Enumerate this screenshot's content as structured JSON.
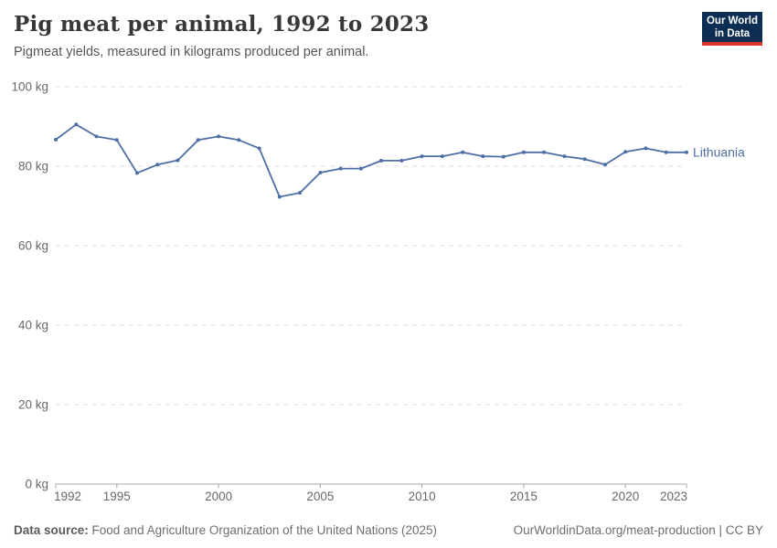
{
  "header": {
    "title": "Pig meat per animal, 1992 to 2023",
    "subtitle": "Pigmeat yields, measured in kilograms produced per animal."
  },
  "logo": {
    "line1": "Our World",
    "line2": "in Data"
  },
  "chart_data": {
    "type": "line",
    "title": "Pig meat per animal, 1992 to 2023",
    "ylabel": "",
    "xlabel": "",
    "unit": "kg",
    "ylim": [
      0,
      100
    ],
    "grid": true,
    "legend_position": "end-of-line",
    "x": [
      1992,
      1993,
      1994,
      1995,
      1996,
      1997,
      1998,
      1999,
      2000,
      2001,
      2002,
      2003,
      2004,
      2005,
      2006,
      2007,
      2008,
      2009,
      2010,
      2011,
      2012,
      2013,
      2014,
      2015,
      2016,
      2017,
      2018,
      2019,
      2020,
      2021,
      2022,
      2023
    ],
    "series": [
      {
        "name": "Lithuania",
        "color": "#4d6fa6",
        "values": [
          86.7,
          90.5,
          87.5,
          86.6,
          78.3,
          80.4,
          81.5,
          86.6,
          87.5,
          86.6,
          84.5,
          72.3,
          73.3,
          78.4,
          79.4,
          79.4,
          81.4,
          81.4,
          82.5,
          82.5,
          83.5,
          82.5,
          82.4,
          83.5,
          83.5,
          82.5,
          81.8,
          80.4,
          83.6,
          84.5,
          83.5,
          83.5
        ]
      }
    ],
    "yticks": [
      0,
      20,
      40,
      60,
      80,
      100
    ],
    "ytick_labels": [
      "0 kg",
      "20 kg",
      "40 kg",
      "60 kg",
      "80 kg",
      "100 kg"
    ],
    "xticks": [
      1992,
      1995,
      2000,
      2005,
      2010,
      2015,
      2020,
      2023
    ]
  },
  "footer": {
    "source_label": "Data source:",
    "source_text": " Food and Agriculture Organization of the United Nations (2025)",
    "link_text": "OurWorldinData.org/meat-production",
    "license_suffix": " | CC BY"
  },
  "colors": {
    "series": "#4d6fa6",
    "logo_bg": "#0d2e53",
    "logo_accent": "#dc352c",
    "grid": "#dcdcdc",
    "axis": "#a7a7a7",
    "tick_text": "#686868"
  }
}
